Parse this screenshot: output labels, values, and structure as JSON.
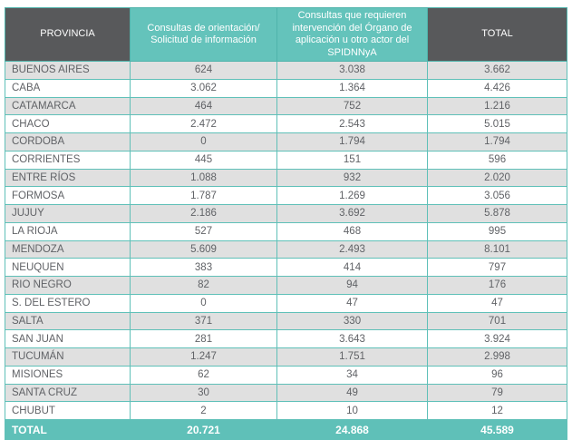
{
  "chart_data": {
    "type": "table",
    "columns": [
      "PROVINCIA",
      "Consultas de orientación/ Solicitud de información",
      "Consultas que requieren intervención del Órgano de aplicación u otro actor del SPIDNNyA",
      "TOTAL"
    ],
    "rows": [
      [
        "BUENOS AIRES",
        "624",
        "3.038",
        "3.662"
      ],
      [
        "CABA",
        "3.062",
        "1.364",
        "4.426"
      ],
      [
        "CATAMARCA",
        "464",
        "752",
        "1.216"
      ],
      [
        "CHACO",
        "2.472",
        "2.543",
        "5.015"
      ],
      [
        "CORDOBA",
        "0",
        "1.794",
        "1.794"
      ],
      [
        "CORRIENTES",
        "445",
        "151",
        "596"
      ],
      [
        "ENTRE RÍOS",
        "1.088",
        "932",
        "2.020"
      ],
      [
        "FORMOSA",
        "1.787",
        "1.269",
        "3.056"
      ],
      [
        "JUJUY",
        "2.186",
        "3.692",
        "5.878"
      ],
      [
        "LA RIOJA",
        "527",
        "468",
        "995"
      ],
      [
        "MENDOZA",
        "5.609",
        "2.493",
        "8.101"
      ],
      [
        "NEUQUEN",
        "383",
        "414",
        "797"
      ],
      [
        "RIO NEGRO",
        "82",
        "94",
        "176"
      ],
      [
        "S. DEL ESTERO",
        "0",
        "47",
        "47"
      ],
      [
        "SALTA",
        "371",
        "330",
        "701"
      ],
      [
        "SAN JUAN",
        "281",
        "3.643",
        "3.924"
      ],
      [
        "TUCUMÁN",
        "1.247",
        "1.751",
        "2.998"
      ],
      [
        "MISIONES",
        "62",
        "34",
        "96"
      ],
      [
        "SANTA CRUZ",
        "30",
        "49",
        "79"
      ],
      [
        "CHUBUT",
        "2",
        "10",
        "12"
      ]
    ],
    "total_row": [
      "TOTAL",
      "20.721",
      "24.868",
      "45.589"
    ]
  },
  "colors": {
    "teal": "#5FC0B8",
    "header_teal": "#64C3BB",
    "header_gray": "#58595B",
    "row_alt": "#E0E0E0",
    "row_white": "#FFFFFF",
    "body_text": "#606266",
    "header_text": "#FFFFFF"
  }
}
